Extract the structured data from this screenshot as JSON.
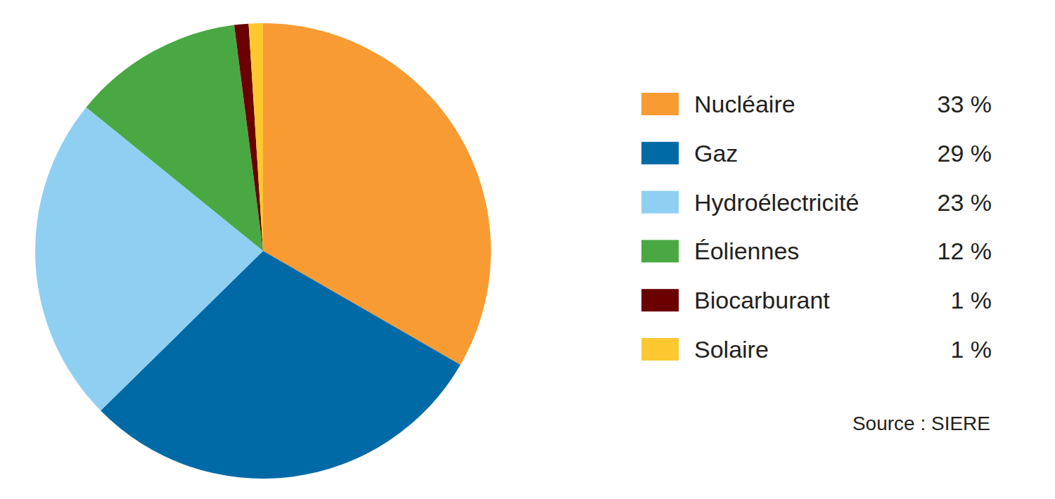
{
  "chart_data": {
    "type": "pie",
    "categories": [
      "Nucléaire",
      "Gaz",
      "Hydroélectricité",
      "Éoliennes",
      "Biocarburant",
      "Solaire"
    ],
    "values": [
      33,
      29,
      23,
      12,
      1,
      1
    ],
    "value_labels": [
      "33 %",
      "29 %",
      "23 %",
      "12 %",
      "1 %",
      "1 %"
    ],
    "colors": [
      "#f99b33",
      "#006aa6",
      "#8fd0f2",
      "#4aa843",
      "#6b0000",
      "#fdc72f"
    ],
    "legend": "right",
    "source": "Source : SIERE"
  }
}
